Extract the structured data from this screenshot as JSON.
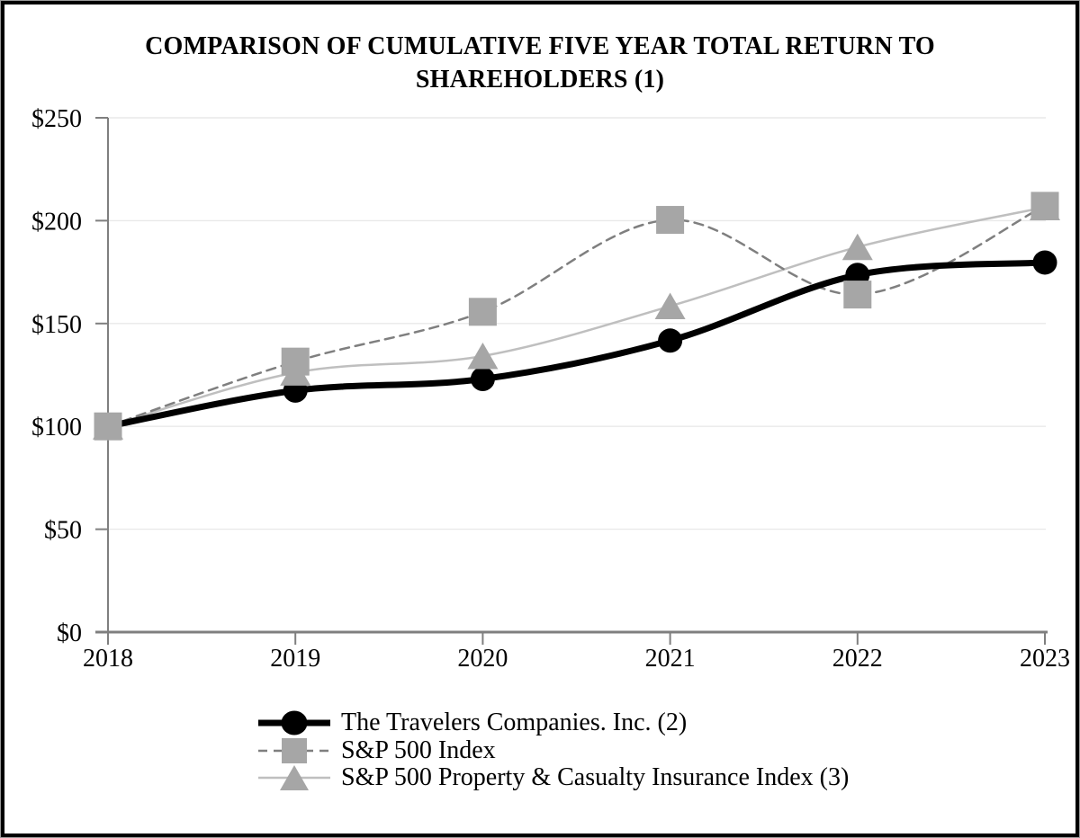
{
  "chart_data": {
    "type": "line",
    "title": "COMPARISON OF CUMULATIVE FIVE YEAR TOTAL RETURN TO SHAREHOLDERS (1)",
    "title_lines": [
      "COMPARISON OF CUMULATIVE FIVE YEAR TOTAL RETURN TO",
      "SHAREHOLDERS (1)"
    ],
    "x": [
      2018,
      2019,
      2020,
      2021,
      2022,
      2023
    ],
    "x_tick_labels": [
      "2018",
      "2019",
      "2020",
      "2021",
      "2022",
      "2023"
    ],
    "y_tick_labels": [
      "$0",
      "$50",
      "$100",
      "$150",
      "$200",
      "$250"
    ],
    "ylim": [
      0,
      250
    ],
    "y_tick_step": 50,
    "grid": "horizontal-light",
    "legend_position": "bottom-left",
    "series": [
      {
        "name": "The Travelers Companies. Inc. (2)",
        "values": [
          100.0,
          117.4,
          123.04,
          141.7,
          173.61,
          179.66
        ],
        "line_color": "#000000",
        "marker_color": "#000000",
        "marker": "circle",
        "line_style": "solid",
        "line_width": 7
      },
      {
        "name": "S&P 500 Index",
        "values": [
          100.0,
          131.49,
          155.68,
          200.37,
          164.08,
          207.21
        ],
        "line_color": "#7f7f7f",
        "marker_color": "#a6a6a6",
        "marker": "square",
        "line_style": "dashed",
        "line_width": 2.5
      },
      {
        "name": "S&P 500 Property & Casualty Insurance Index (3)",
        "values": [
          100.0,
          126.16,
          134.19,
          158.42,
          187.15,
          206.51
        ],
        "line_color": "#bfbfbf",
        "marker_color": "#a6a6a6",
        "marker": "triangle",
        "line_style": "solid",
        "line_width": 2.5
      }
    ]
  },
  "colors": {
    "background": "#ffffff",
    "frame_border": "#000000",
    "frame_outer_edge": "#999999",
    "axis": "#7f7f7f",
    "gridline": "#e9e9e9",
    "text": "#000000"
  }
}
